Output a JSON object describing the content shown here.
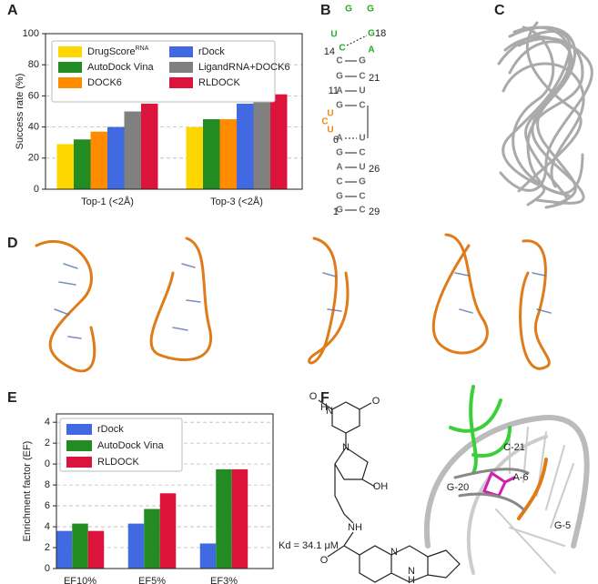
{
  "panel_labels": [
    "A",
    "B",
    "C",
    "D",
    "E",
    "F"
  ],
  "chart_data": [
    {
      "type": "bar",
      "ylabel": "Success rate (%)",
      "categories": [
        "Top-1 (<2Å)",
        "Top-3 (<2Å)"
      ],
      "series": [
        {
          "name": "DrugScore",
          "name_superscript": "RNA",
          "color": "#ffd700",
          "values": [
            29,
            40
          ]
        },
        {
          "name": "AutoDock Vina",
          "color": "#228b22",
          "values": [
            32,
            45
          ]
        },
        {
          "name": "DOCK6",
          "color": "#ff8c00",
          "values": [
            37,
            45
          ]
        },
        {
          "name": "rDock",
          "color": "#4169e1",
          "values": [
            40,
            55
          ]
        },
        {
          "name": "LigandRNA+DOCK6",
          "color": "#808080",
          "values": [
            50,
            58
          ]
        },
        {
          "name": "RLDOCK",
          "color": "#dc143c",
          "values": [
            55,
            61
          ]
        }
      ],
      "ylim": [
        0,
        100
      ],
      "yticks": [
        0,
        20,
        40,
        60,
        80,
        100
      ],
      "grid": true,
      "legend": "upper left"
    },
    {
      "type": "bar",
      "ylabel": "Enrichment factor (EF)",
      "categories": [
        "EF10%",
        "EF5%",
        "EF3%"
      ],
      "series": [
        {
          "name": "rDock",
          "color": "#4169e1",
          "values": [
            3.6,
            4.3,
            2.4
          ]
        },
        {
          "name": "AutoDock Vina",
          "color": "#228b22",
          "values": [
            4.3,
            5.7,
            9.5
          ]
        },
        {
          "name": "RLDOCK",
          "color": "#dc143c",
          "values": [
            3.6,
            7.2,
            9.5
          ]
        }
      ],
      "ylim": [
        0,
        14.8
      ],
      "yticks": [
        0,
        2,
        4,
        6,
        8,
        {
          "value": 10,
          "label": "0"
        },
        {
          "value": 12,
          "label": "2"
        },
        {
          "value": 14,
          "label": "4"
        }
      ],
      "grid": true,
      "legend": "upper left"
    }
  ],
  "rna_structure": {
    "loop_top": [
      "U",
      "G",
      "G"
    ],
    "loop_right": [
      "A"
    ],
    "bulge": [
      "U",
      "C",
      "U"
    ],
    "pairs": [
      [
        "C",
        "G"
      ],
      [
        "C",
        "G"
      ],
      [
        "G",
        "C"
      ],
      [
        "A",
        "U"
      ],
      [
        "G",
        "C"
      ],
      [
        "A",
        "U"
      ],
      [
        "G",
        "C"
      ],
      [
        "A",
        "U"
      ],
      [
        "C",
        "G"
      ],
      [
        "G",
        "C"
      ],
      [
        "G",
        "C"
      ]
    ],
    "numbering": [
      14,
      18,
      21,
      11,
      6,
      26,
      1,
      29
    ]
  },
  "panel_f": {
    "kd_label": "Kd = 34.1 μM",
    "residue_labels": [
      "C-21",
      "A-6",
      "G-20",
      "G-5"
    ],
    "atom_labels": [
      "O",
      "N",
      "H",
      "O",
      "N",
      "OH",
      "NH",
      "O",
      "N",
      "N",
      "H"
    ]
  }
}
